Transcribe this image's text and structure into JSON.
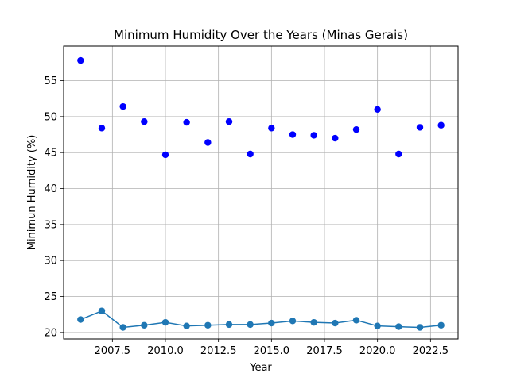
{
  "chart_data": {
    "type": "scatter",
    "title": "Minimum Humidity Over the Years (Minas Gerais)",
    "xlabel": "Year",
    "ylabel": "Minimun Humidity (%)",
    "xlim": [
      2005.2,
      2023.8
    ],
    "ylim": [
      19.1,
      59.8
    ],
    "xticks": [
      2007.5,
      2010.0,
      2012.5,
      2015.0,
      2017.5,
      2020.0,
      2022.5
    ],
    "xtick_labels": [
      "2007.5",
      "2010.0",
      "2012.5",
      "2015.0",
      "2017.5",
      "2020.0",
      "2022.5"
    ],
    "yticks": [
      20,
      25,
      30,
      35,
      40,
      45,
      50,
      55
    ],
    "ytick_labels": [
      "20",
      "25",
      "30",
      "35",
      "40",
      "45",
      "50",
      "55"
    ],
    "grid": true,
    "series": [
      {
        "style": "scatter",
        "color": "#0000ff",
        "x": [
          2006,
          2007,
          2008,
          2009,
          2010,
          2011,
          2012,
          2013,
          2014,
          2015,
          2016,
          2017,
          2018,
          2019,
          2020,
          2021,
          2022,
          2023
        ],
        "y": [
          57.8,
          48.4,
          51.4,
          49.3,
          44.7,
          49.2,
          46.4,
          49.3,
          44.8,
          48.4,
          47.5,
          47.4,
          47.0,
          48.2,
          51.0,
          44.8,
          48.5,
          48.8
        ]
      },
      {
        "style": "line-marker",
        "color": "#1f77b4",
        "x": [
          2006,
          2007,
          2008,
          2009,
          2010,
          2011,
          2012,
          2013,
          2014,
          2015,
          2016,
          2017,
          2018,
          2019,
          2020,
          2021,
          2022,
          2023
        ],
        "y": [
          21.8,
          23.0,
          20.7,
          21.0,
          21.4,
          20.9,
          21.0,
          21.1,
          21.1,
          21.3,
          21.6,
          21.4,
          21.3,
          21.7,
          20.9,
          20.8,
          20.7,
          21.0
        ]
      }
    ]
  }
}
